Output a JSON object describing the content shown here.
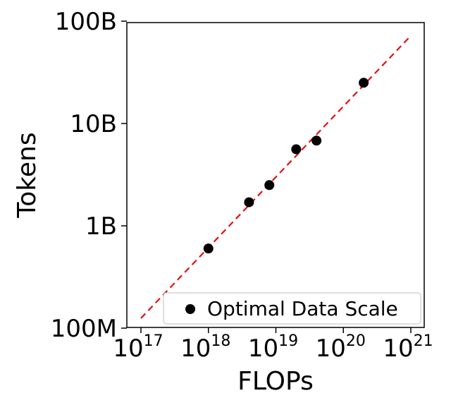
{
  "chart_data": {
    "type": "scatter",
    "xlabel": "FLOPs",
    "ylabel": "Tokens",
    "x_scale": "log",
    "y_scale": "log",
    "xlim": [
      1e+17,
      1e+21
    ],
    "ylim": [
      100000000.0,
      100000000000.0
    ],
    "x_ticks": [
      {
        "value": 1e+17,
        "base": "10",
        "exp": "17"
      },
      {
        "value": 1e+18,
        "base": "10",
        "exp": "18"
      },
      {
        "value": 1e+19,
        "base": "10",
        "exp": "19"
      },
      {
        "value": 1e+20,
        "base": "10",
        "exp": "20"
      },
      {
        "value": 1e+21,
        "base": "10",
        "exp": "21"
      }
    ],
    "y_ticks": [
      {
        "value": 100000000.0,
        "label": "100M"
      },
      {
        "value": 1000000000.0,
        "label": "1B"
      },
      {
        "value": 10000000000.0,
        "label": "10B"
      },
      {
        "value": 100000000000.0,
        "label": "100B"
      }
    ],
    "series": [
      {
        "name": "Optimal Data Scale",
        "kind": "scatter",
        "color": "#000000",
        "x": [
          1e+18,
          4e+18,
          8e+18,
          2e+19,
          4e+19,
          2e+20
        ],
        "y": [
          600000000.0,
          1700000000.0,
          2500000000.0,
          5600000000.0,
          6800000000.0,
          25000000000.0
        ]
      },
      {
        "kind": "fit-line",
        "color": "#e01010",
        "style": "dashed",
        "x": [
          1e+17,
          1e+21
        ],
        "y": [
          125000000.0,
          72000000000.0
        ]
      }
    ],
    "legend": {
      "position": "lower-right",
      "entries": [
        "Optimal Data Scale"
      ]
    },
    "grid": false
  }
}
